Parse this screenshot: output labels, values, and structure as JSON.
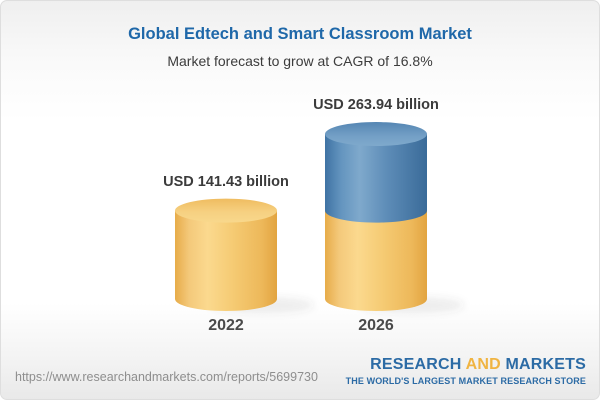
{
  "header": {
    "title": "Global Edtech and Smart Classroom Market",
    "subtitle": "Market forecast to grow at CAGR of 16.8%"
  },
  "chart_data": {
    "type": "bar",
    "subtype": "3d-cylinder-stacked",
    "title": "Global Edtech and Smart Classroom Market",
    "subtitle": "Market forecast to grow at CAGR of 16.8%",
    "unit": "USD billion",
    "cagr_percent": 16.8,
    "categories": [
      "2022",
      "2026"
    ],
    "totals": [
      141.43,
      263.94
    ],
    "value_labels": [
      "USD 141.43 billion",
      "USD 263.94 billion"
    ],
    "series": [
      {
        "name": "2022 market level",
        "color": "#F5CB74",
        "values": [
          141.43,
          141.43
        ]
      },
      {
        "name": "growth to 2026",
        "color": "#4F82B1",
        "values": [
          0,
          122.51
        ]
      }
    ],
    "legend": "none",
    "grid": false,
    "ylim": [
      0,
      280
    ]
  },
  "footer": {
    "url": "https://www.researchandmarkets.com/reports/5699730",
    "logo": {
      "word1": "RESEARCH",
      "word2": "AND",
      "word3": "MARKETS",
      "tagline": "THE WORLD'S LARGEST MARKET RESEARCH STORE"
    }
  },
  "colors": {
    "title_blue": "#1F68A9",
    "text_dark": "#3C3C3C",
    "url_gray": "#8E8E8E",
    "logo_blue": "#2C6BA5",
    "logo_gold": "#F0B442",
    "cylinder_gold": "#F5CB74",
    "cylinder_blue": "#4F82B1"
  }
}
